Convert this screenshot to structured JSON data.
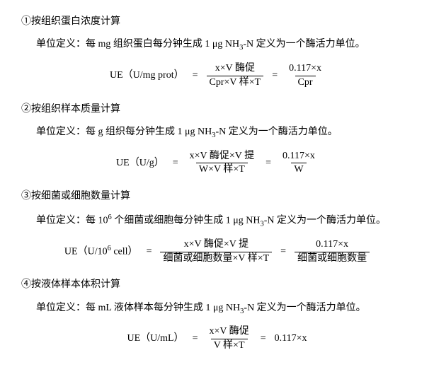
{
  "sections": [
    {
      "heading": "①按组织蛋白浓度计算",
      "def": "单位定义：每 mg 组织蛋白每分钟生成 1 μg NH₃-N 定义为一个酶活力单位。",
      "formula": {
        "label": "UE（U/mg prot）",
        "frac1_num": "x×V 酶促",
        "frac1_den": "Cpr×V 样×T",
        "frac2_num": "0.117×x",
        "frac2_den": "Cpr"
      }
    },
    {
      "heading": "②按组织样本质量计算",
      "def": "单位定义：每 g 组织每分钟生成 1 μg NH₃-N 定义为一个酶活力单位。",
      "formula": {
        "label": "UE（U/g）",
        "frac1_num": "x×V 酶促×V 提",
        "frac1_den": "W×V 样×T",
        "frac2_num": "0.117×x",
        "frac2_den": "W"
      }
    },
    {
      "heading": "③按细菌或细胞数量计算",
      "def": "单位定义：每 10⁶ 个细菌或细胞每分钟生成 1 μg NH₃-N 定义为一个酶活力单位。",
      "formula": {
        "label": "UE（U/10⁶ cell）",
        "frac1_num": "x×V 酶促×V 提",
        "frac1_den": "细菌或细胞数量×V 样×T",
        "frac2_num": "0.117×x",
        "frac2_den": "细菌或细胞数量"
      }
    },
    {
      "heading": "④按液体样本体积计算",
      "def": "单位定义：每 mL 液体样本每分钟生成 1 μg NH₃-N 定义为一个酶活力单位。",
      "formula": {
        "label": "UE（U/mL）",
        "frac1_num": "x×V 酶促",
        "frac1_den": "V 样×T",
        "tail": "0.117×x"
      }
    }
  ]
}
